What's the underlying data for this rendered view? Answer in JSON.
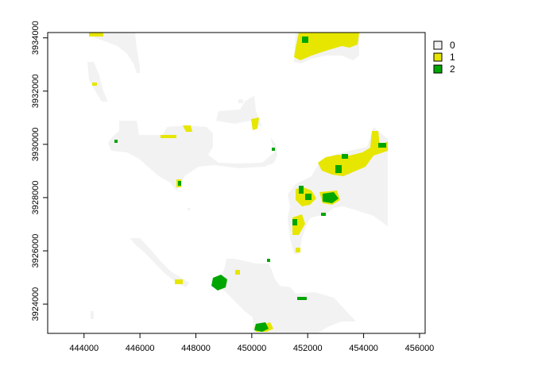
{
  "map": {
    "type": "raster",
    "x_ticks": [
      "444000",
      "446000",
      "448000",
      "450000",
      "452000",
      "454000",
      "456000"
    ],
    "y_ticks": [
      "3924000",
      "3926000",
      "3928000",
      "3930000",
      "3932000",
      "3934000"
    ],
    "x_tick_values": [
      444000,
      446000,
      448000,
      450000,
      452000,
      454000,
      456000
    ],
    "y_tick_values": [
      3924000,
      3926000,
      3928000,
      3930000,
      3932000,
      3934000
    ],
    "x_range": [
      442700,
      456200
    ],
    "y_range": [
      3922900,
      3934200
    ],
    "legend": [
      {
        "label": "0",
        "color": "#f2f2f2"
      },
      {
        "label": "1",
        "color": "#e6e600"
      },
      {
        "label": "2",
        "color": "#00a600"
      }
    ]
  }
}
